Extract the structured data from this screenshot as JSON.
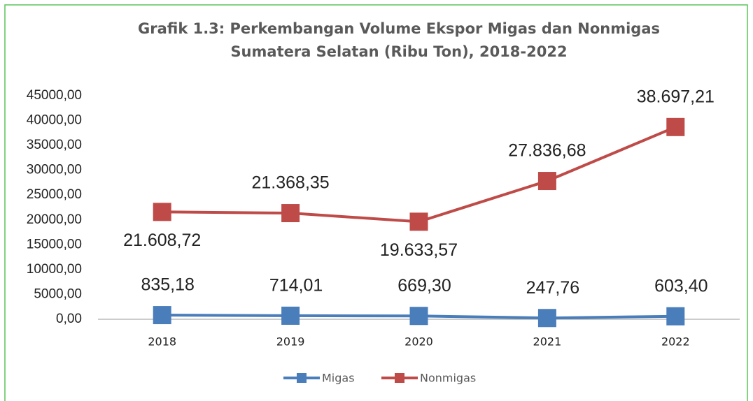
{
  "chart_data": {
    "type": "line",
    "title": "Grafik 1.3: Perkembangan Volume Ekspor Migas dan Nonmigas",
    "subtitle": "Sumatera Selatan (Ribu Ton), 2018-2022",
    "categories": [
      "2018",
      "2019",
      "2020",
      "2021",
      "2022"
    ],
    "series": [
      {
        "name": "Migas",
        "color": "#4a7ebb",
        "values": [
          835.18,
          714.01,
          669.3,
          247.76,
          603.4
        ],
        "value_labels": [
          "835,18",
          "714,01",
          "669,30",
          "247,76",
          "603,40"
        ]
      },
      {
        "name": "Nonmigas",
        "color": "#be4b48",
        "values": [
          21608.72,
          21368.35,
          19633.57,
          27836.68,
          38697.21
        ],
        "value_labels": [
          "21.608,72",
          "21.368,35",
          "19.633,57",
          "27.836,68",
          "38.697,21"
        ]
      }
    ],
    "ylim": [
      0,
      45000
    ],
    "yticks": [
      {
        "value": 0,
        "label": "0,00"
      },
      {
        "value": 5000,
        "label": "5000,00"
      },
      {
        "value": 10000,
        "label": "10000,00"
      },
      {
        "value": 15000,
        "label": "15000,00"
      },
      {
        "value": 20000,
        "label": "20000,00"
      },
      {
        "value": 25000,
        "label": "25000,00"
      },
      {
        "value": 30000,
        "label": "30000,00"
      },
      {
        "value": 35000,
        "label": "35000,00"
      },
      {
        "value": 40000,
        "label": "40000,00"
      },
      {
        "value": 45000,
        "label": "45000,00"
      }
    ],
    "grid": false,
    "legend": "bottom"
  }
}
